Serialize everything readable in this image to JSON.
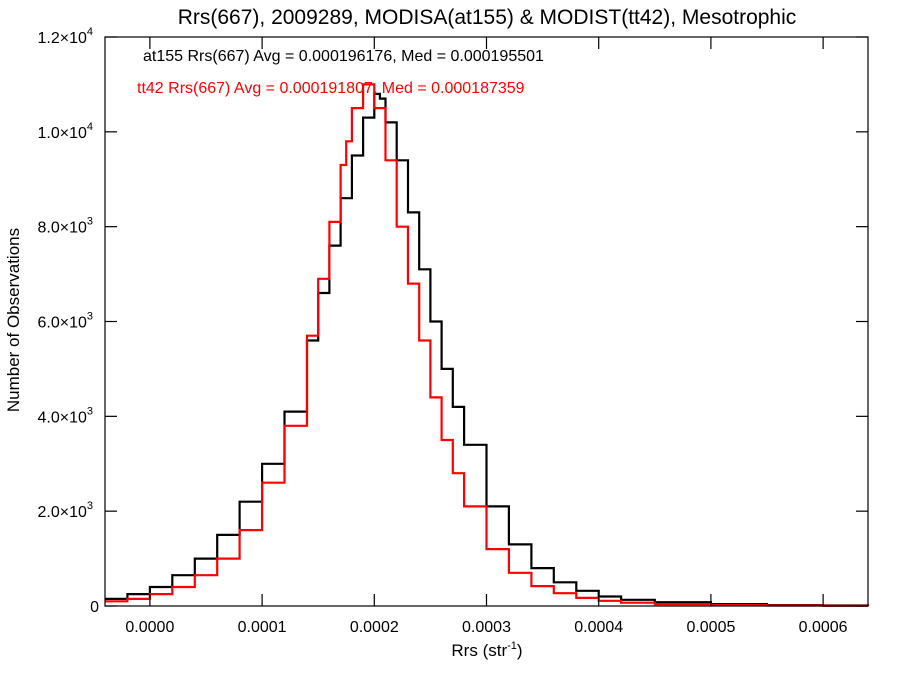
{
  "chart_data": {
    "type": "line",
    "title": "Rrs(667), 2009289, MODISA(at155) & MODIST(tt42), Mesotrophic",
    "xlabel": "Rrs (str",
    "xlabel_exp": "-1",
    "xlabel_suffix": ")",
    "ylabel": "Number of Observations",
    "xlim": [
      -4e-05,
      0.00064
    ],
    "ylim": [
      0,
      12000
    ],
    "x_ticks": [
      {
        "value": 0.0,
        "label": "0.0000"
      },
      {
        "value": 0.0001,
        "label": "0.0001"
      },
      {
        "value": 0.0002,
        "label": "0.0002"
      },
      {
        "value": 0.0003,
        "label": "0.0003"
      },
      {
        "value": 0.0004,
        "label": "0.0004"
      },
      {
        "value": 0.0005,
        "label": "0.0005"
      },
      {
        "value": 0.0006,
        "label": "0.0006"
      }
    ],
    "y_ticks": [
      {
        "value": 0,
        "label": "0",
        "exp": ""
      },
      {
        "value": 2000,
        "label": "2.0×10",
        "exp": "3"
      },
      {
        "value": 4000,
        "label": "4.0×10",
        "exp": "3"
      },
      {
        "value": 6000,
        "label": "6.0×10",
        "exp": "3"
      },
      {
        "value": 8000,
        "label": "8.0×10",
        "exp": "3"
      },
      {
        "value": 10000,
        "label": "1.0×10",
        "exp": "4"
      },
      {
        "value": 12000,
        "label": "1.2×10",
        "exp": "4"
      }
    ],
    "annotations": [
      {
        "text": "at155 Rrs(667) Avg = 0.000196176, Med = 0.000195501",
        "color": "#000000"
      },
      {
        "text": "tt42 Rrs(667) Avg = 0.000191807, Med = 0.000187359",
        "color": "#ff0000"
      }
    ],
    "series": [
      {
        "color": "#000000",
        "style": "step",
        "x": [
          -4e-05,
          -2e-05,
          0.0,
          2e-05,
          4e-05,
          6e-05,
          8e-05,
          0.0001,
          0.00012,
          0.00014,
          0.00015,
          0.00016,
          0.00017,
          0.00018,
          0.00019,
          0.0002,
          0.000205,
          0.00021,
          0.00022,
          0.00023,
          0.00024,
          0.00025,
          0.00026,
          0.00027,
          0.00028,
          0.0003,
          0.00032,
          0.00034,
          0.00036,
          0.00038,
          0.0004,
          0.00042,
          0.00045,
          0.0005,
          0.00055,
          0.0006,
          0.00064
        ],
        "y": [
          150,
          250,
          400,
          650,
          1000,
          1500,
          2200,
          3000,
          4100,
          5600,
          6600,
          7600,
          8600,
          9500,
          10300,
          10800,
          10700,
          10200,
          9400,
          8300,
          7100,
          6000,
          5000,
          4200,
          3400,
          2100,
          1300,
          800,
          500,
          320,
          200,
          130,
          80,
          40,
          20,
          10,
          5
        ]
      },
      {
        "color": "#ff0000",
        "style": "step",
        "x": [
          -4e-05,
          -2e-05,
          0.0,
          2e-05,
          4e-05,
          6e-05,
          8e-05,
          0.0001,
          0.00012,
          0.00014,
          0.00015,
          0.00016,
          0.00017,
          0.000175,
          0.00018,
          0.00019,
          0.0002,
          0.00021,
          0.00022,
          0.00023,
          0.00024,
          0.00025,
          0.00026,
          0.00027,
          0.00028,
          0.0003,
          0.00032,
          0.00034,
          0.00036,
          0.00038,
          0.0004,
          0.00042,
          0.00045,
          0.0005,
          0.00055,
          0.0006,
          0.00064
        ],
        "y": [
          100,
          150,
          250,
          400,
          650,
          1000,
          1600,
          2600,
          3800,
          5700,
          6900,
          8100,
          9300,
          9800,
          10500,
          11000,
          10500,
          9400,
          8000,
          6800,
          5600,
          4400,
          3500,
          2800,
          2100,
          1200,
          700,
          420,
          270,
          170,
          110,
          70,
          40,
          20,
          10,
          5,
          3
        ]
      }
    ],
    "grid": false,
    "legend": "none"
  }
}
